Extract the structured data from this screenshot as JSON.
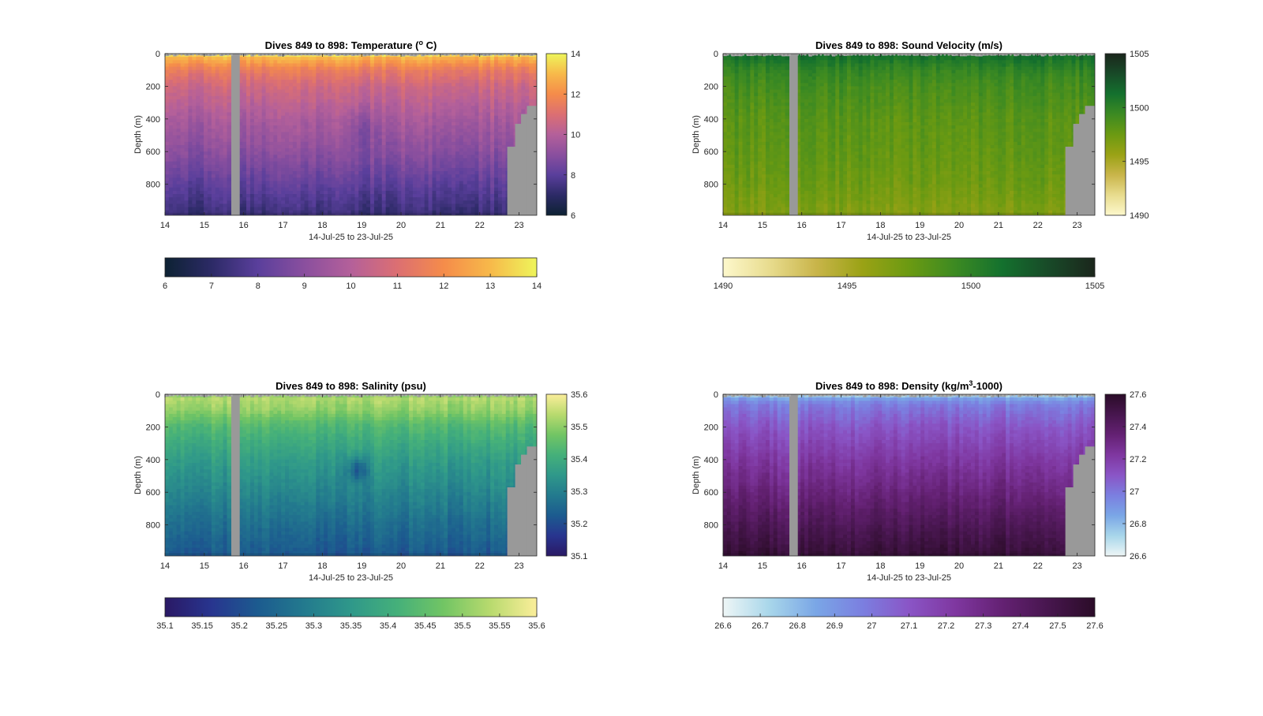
{
  "chart_data": [
    {
      "type": "heatmap",
      "variable": "temperature",
      "title": "Dives 849 to 898: Temperature (",
      "title_sup": "o",
      "title_suffix": " C)",
      "xlabel": "14-Jul-25 to 23-Jul-25",
      "ylabel": "Depth (m)",
      "xlim": [
        14,
        23.45
      ],
      "ylim": [
        0,
        990
      ],
      "xticks": [
        "14",
        "15",
        "16",
        "17",
        "18",
        "19",
        "20",
        "21",
        "22",
        "23"
      ],
      "yticks": [
        "0",
        "200",
        "400",
        "600",
        "800"
      ],
      "clim": [
        6,
        14
      ],
      "colorbar_right_ticks": [
        "6",
        "8",
        "10",
        "12",
        "14"
      ],
      "colorbar_bottom_ticks": [
        "6",
        "7",
        "8",
        "9",
        "10",
        "11",
        "12",
        "13",
        "14"
      ],
      "colormap": [
        "#0d2233",
        "#2c2a66",
        "#5a3f9c",
        "#8a4f9e",
        "#b4609a",
        "#dc6f72",
        "#f58c4a",
        "#f7b94a",
        "#eef55b"
      ],
      "profile_depth": [
        0,
        30,
        100,
        200,
        400,
        600,
        800,
        980
      ],
      "profile_values": [
        13.8,
        12.8,
        11.5,
        10.6,
        9.7,
        9.0,
        8.1,
        7.3
      ],
      "gap_dates": [
        15.72,
        15.9
      ],
      "seafloor_steps": [
        [
          22.7,
          570
        ],
        [
          22.9,
          430
        ],
        [
          23.05,
          370
        ],
        [
          23.2,
          320
        ]
      ],
      "color_bar_hue": "#999999"
    },
    {
      "type": "heatmap",
      "variable": "sound_velocity",
      "title": "Dives 849 to 898: Sound Velocity (m/s)",
      "xlabel": "14-Jul-25 to 23-Jul-25",
      "ylabel": "Depth (m)",
      "xlim": [
        14,
        23.45
      ],
      "ylim": [
        0,
        990
      ],
      "xticks": [
        "14",
        "15",
        "16",
        "17",
        "18",
        "19",
        "20",
        "21",
        "22",
        "23"
      ],
      "yticks": [
        "0",
        "200",
        "400",
        "600",
        "800"
      ],
      "clim": [
        1490,
        1505
      ],
      "colorbar_right_ticks": [
        "1490",
        "1495",
        "1500",
        "1505"
      ],
      "colorbar_bottom_ticks": [
        "1490",
        "1495",
        "1500",
        "1505"
      ],
      "colormap": [
        "#fdf8cc",
        "#e8dc8e",
        "#c9b54a",
        "#9aa215",
        "#6b9a12",
        "#3c8a22",
        "#14712e",
        "#184a28",
        "#1b261c"
      ],
      "profile_depth": [
        0,
        30,
        100,
        200,
        400,
        600,
        800,
        980
      ],
      "profile_values": [
        1501.5,
        1501.0,
        1499.8,
        1499.0,
        1498.2,
        1497.9,
        1497.4,
        1496.6
      ],
      "gap_dates": [
        15.72,
        15.9
      ],
      "seafloor_steps": [
        [
          22.7,
          570
        ],
        [
          22.9,
          430
        ],
        [
          23.05,
          370
        ],
        [
          23.2,
          320
        ]
      ]
    },
    {
      "type": "heatmap",
      "variable": "salinity",
      "title": "Dives 849 to 898: Salinity (psu)",
      "xlabel": "14-Jul-25 to 23-Jul-25",
      "ylabel": "Depth (m)",
      "xlim": [
        14,
        23.45
      ],
      "ylim": [
        0,
        990
      ],
      "xticks": [
        "14",
        "15",
        "16",
        "17",
        "18",
        "19",
        "20",
        "21",
        "22",
        "23"
      ],
      "yticks": [
        "0",
        "200",
        "400",
        "600",
        "800"
      ],
      "clim": [
        35.1,
        35.6
      ],
      "colorbar_right_ticks": [
        "35.1",
        "35.2",
        "35.3",
        "35.4",
        "35.5",
        "35.6"
      ],
      "colorbar_bottom_ticks": [
        "35.1",
        "35.15",
        "35.2",
        "35.25",
        "35.3",
        "35.35",
        "35.4",
        "35.45",
        "35.5",
        "35.55",
        "35.6"
      ],
      "colormap": [
        "#2a1965",
        "#28358f",
        "#1c5b8f",
        "#237a8e",
        "#2f988a",
        "#45b07a",
        "#72c564",
        "#b8da6e",
        "#fbee9a"
      ],
      "profile_depth": [
        0,
        30,
        100,
        200,
        400,
        600,
        800,
        980
      ],
      "profile_values": [
        35.5,
        35.53,
        35.5,
        35.43,
        35.36,
        35.31,
        35.26,
        35.22
      ],
      "gap_dates": [
        15.72,
        15.9
      ],
      "seafloor_steps": [
        [
          22.7,
          570
        ],
        [
          22.9,
          430
        ],
        [
          23.05,
          370
        ],
        [
          23.2,
          320
        ]
      ]
    },
    {
      "type": "heatmap",
      "variable": "density",
      "title": "Dives 849 to 898: Density (kg/m",
      "title_sup": "3",
      "title_suffix": "-1000)",
      "xlabel": "14-Jul-25 to 23-Jul-25",
      "ylabel": "Depth (m)",
      "xlim": [
        14,
        23.45
      ],
      "ylim": [
        0,
        990
      ],
      "xticks": [
        "14",
        "15",
        "16",
        "17",
        "18",
        "19",
        "20",
        "21",
        "22",
        "23"
      ],
      "yticks": [
        "0",
        "200",
        "400",
        "600",
        "800"
      ],
      "clim": [
        26.6,
        27.6
      ],
      "colorbar_right_ticks": [
        "26.6",
        "26.8",
        "27",
        "27.2",
        "27.4",
        "27.6"
      ],
      "colorbar_bottom_ticks": [
        "26.6",
        "26.7",
        "26.8",
        "26.9",
        "27",
        "27.1",
        "27.2",
        "27.3",
        "27.4",
        "27.5",
        "27.6"
      ],
      "colormap": [
        "#eef6f6",
        "#a8d6ea",
        "#7aa6e6",
        "#7b7fe0",
        "#8a55c6",
        "#7f37a0",
        "#642173",
        "#47164e",
        "#2b0c28"
      ],
      "profile_depth": [
        0,
        20,
        60,
        200,
        400,
        600,
        800,
        980
      ],
      "profile_values": [
        26.7,
        26.85,
        26.98,
        27.1,
        27.22,
        27.33,
        27.45,
        27.55
      ],
      "gap_dates": [
        15.72,
        15.9
      ],
      "seafloor_steps": [
        [
          22.7,
          570
        ],
        [
          22.9,
          430
        ],
        [
          23.05,
          370
        ],
        [
          23.2,
          320
        ]
      ]
    }
  ]
}
